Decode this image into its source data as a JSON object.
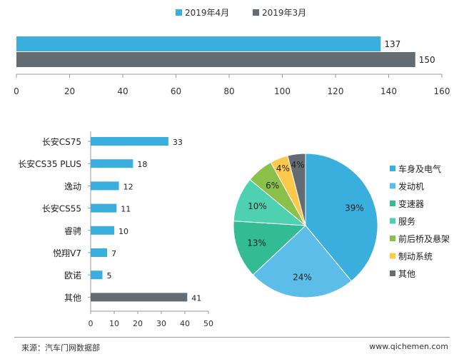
{
  "chart_data": [
    {
      "type": "bar",
      "orientation": "horizontal",
      "series": [
        {
          "name": "2019年4月",
          "values": [
            137
          ],
          "color": "#3aaedc"
        },
        {
          "name": "2019年3月",
          "values": [
            150
          ],
          "color": "#636b73"
        }
      ],
      "xlim": [
        0,
        160
      ],
      "ticks": [
        "0",
        "20",
        "40",
        "60",
        "80",
        "100",
        "120",
        "140",
        "160"
      ],
      "legend": "top"
    },
    {
      "type": "bar",
      "orientation": "horizontal",
      "categories": [
        "长安CS75",
        "长安CS35 PLUS",
        "逸动",
        "长安CS55",
        "睿骋",
        "悦翔V7",
        "欧诺",
        "其他"
      ],
      "values": [
        33,
        18,
        12,
        11,
        10,
        7,
        5,
        41
      ],
      "colors": [
        "#3aaedc",
        "#3aaedc",
        "#3aaedc",
        "#3aaedc",
        "#3aaedc",
        "#3aaedc",
        "#3aaedc",
        "#636b73"
      ],
      "xlim": [
        0,
        50
      ],
      "ticks": [
        "0",
        "10",
        "20",
        "30",
        "40",
        "50"
      ]
    },
    {
      "type": "pie",
      "labels": [
        "车身及电气",
        "发动机",
        "变速器",
        "服务",
        "前后桥及悬架",
        "制动系统",
        "其他"
      ],
      "values": [
        39,
        24,
        13,
        10,
        6,
        4,
        4
      ],
      "value_labels": [
        "39%",
        "24%",
        "13%",
        "10%",
        "6%",
        "4%",
        "4%"
      ],
      "colors": [
        "#3aaedc",
        "#5bbde8",
        "#33bb93",
        "#4ed1b0",
        "#8bc14a",
        "#fcc94a",
        "#636b73"
      ],
      "legend": "right"
    }
  ],
  "footer": {
    "source": "来源：汽车门网数据部",
    "website": "www.qichemen.com"
  }
}
